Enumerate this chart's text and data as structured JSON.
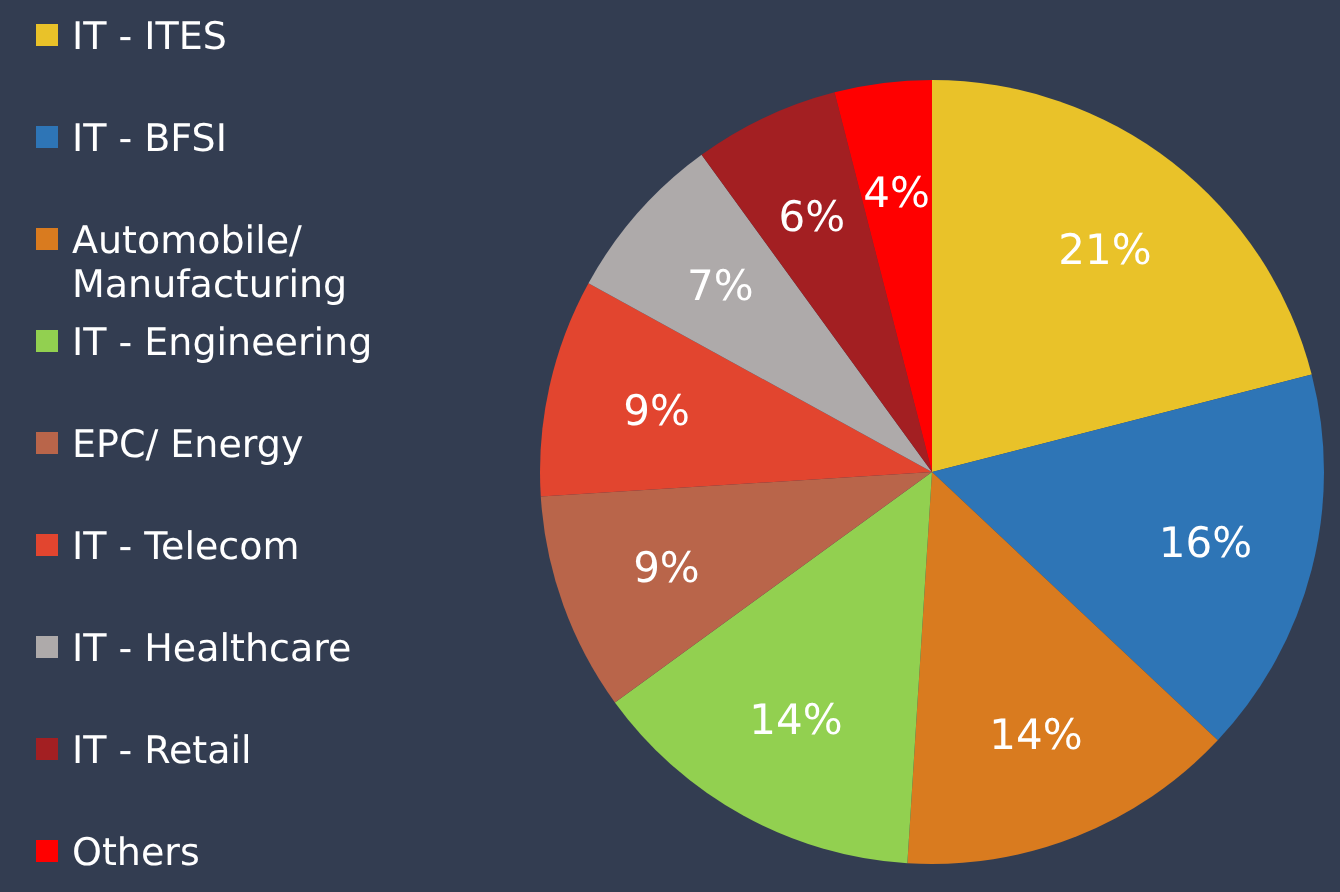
{
  "chart_data": {
    "type": "pie",
    "categories": [
      "IT - ITES",
      "IT - BFSI",
      "Automobile/ Manufacturing",
      "IT - Engineering",
      "EPC/ Energy",
      "IT - Telecom",
      "IT - Healthcare",
      "IT - Retail",
      "Others"
    ],
    "values": [
      21,
      16,
      14,
      14,
      9,
      9,
      7,
      6,
      4
    ],
    "colors": [
      "#e9c229",
      "#2e75b6",
      "#d97b1f",
      "#92d050",
      "#b9654a",
      "#e2452f",
      "#aeaaaa",
      "#a31f22",
      "#ff0000"
    ],
    "value_labels": [
      "21%",
      "16%",
      "14%",
      "14%",
      "9%",
      "9%",
      "7%",
      "6%",
      "4%"
    ],
    "legend": "left"
  }
}
